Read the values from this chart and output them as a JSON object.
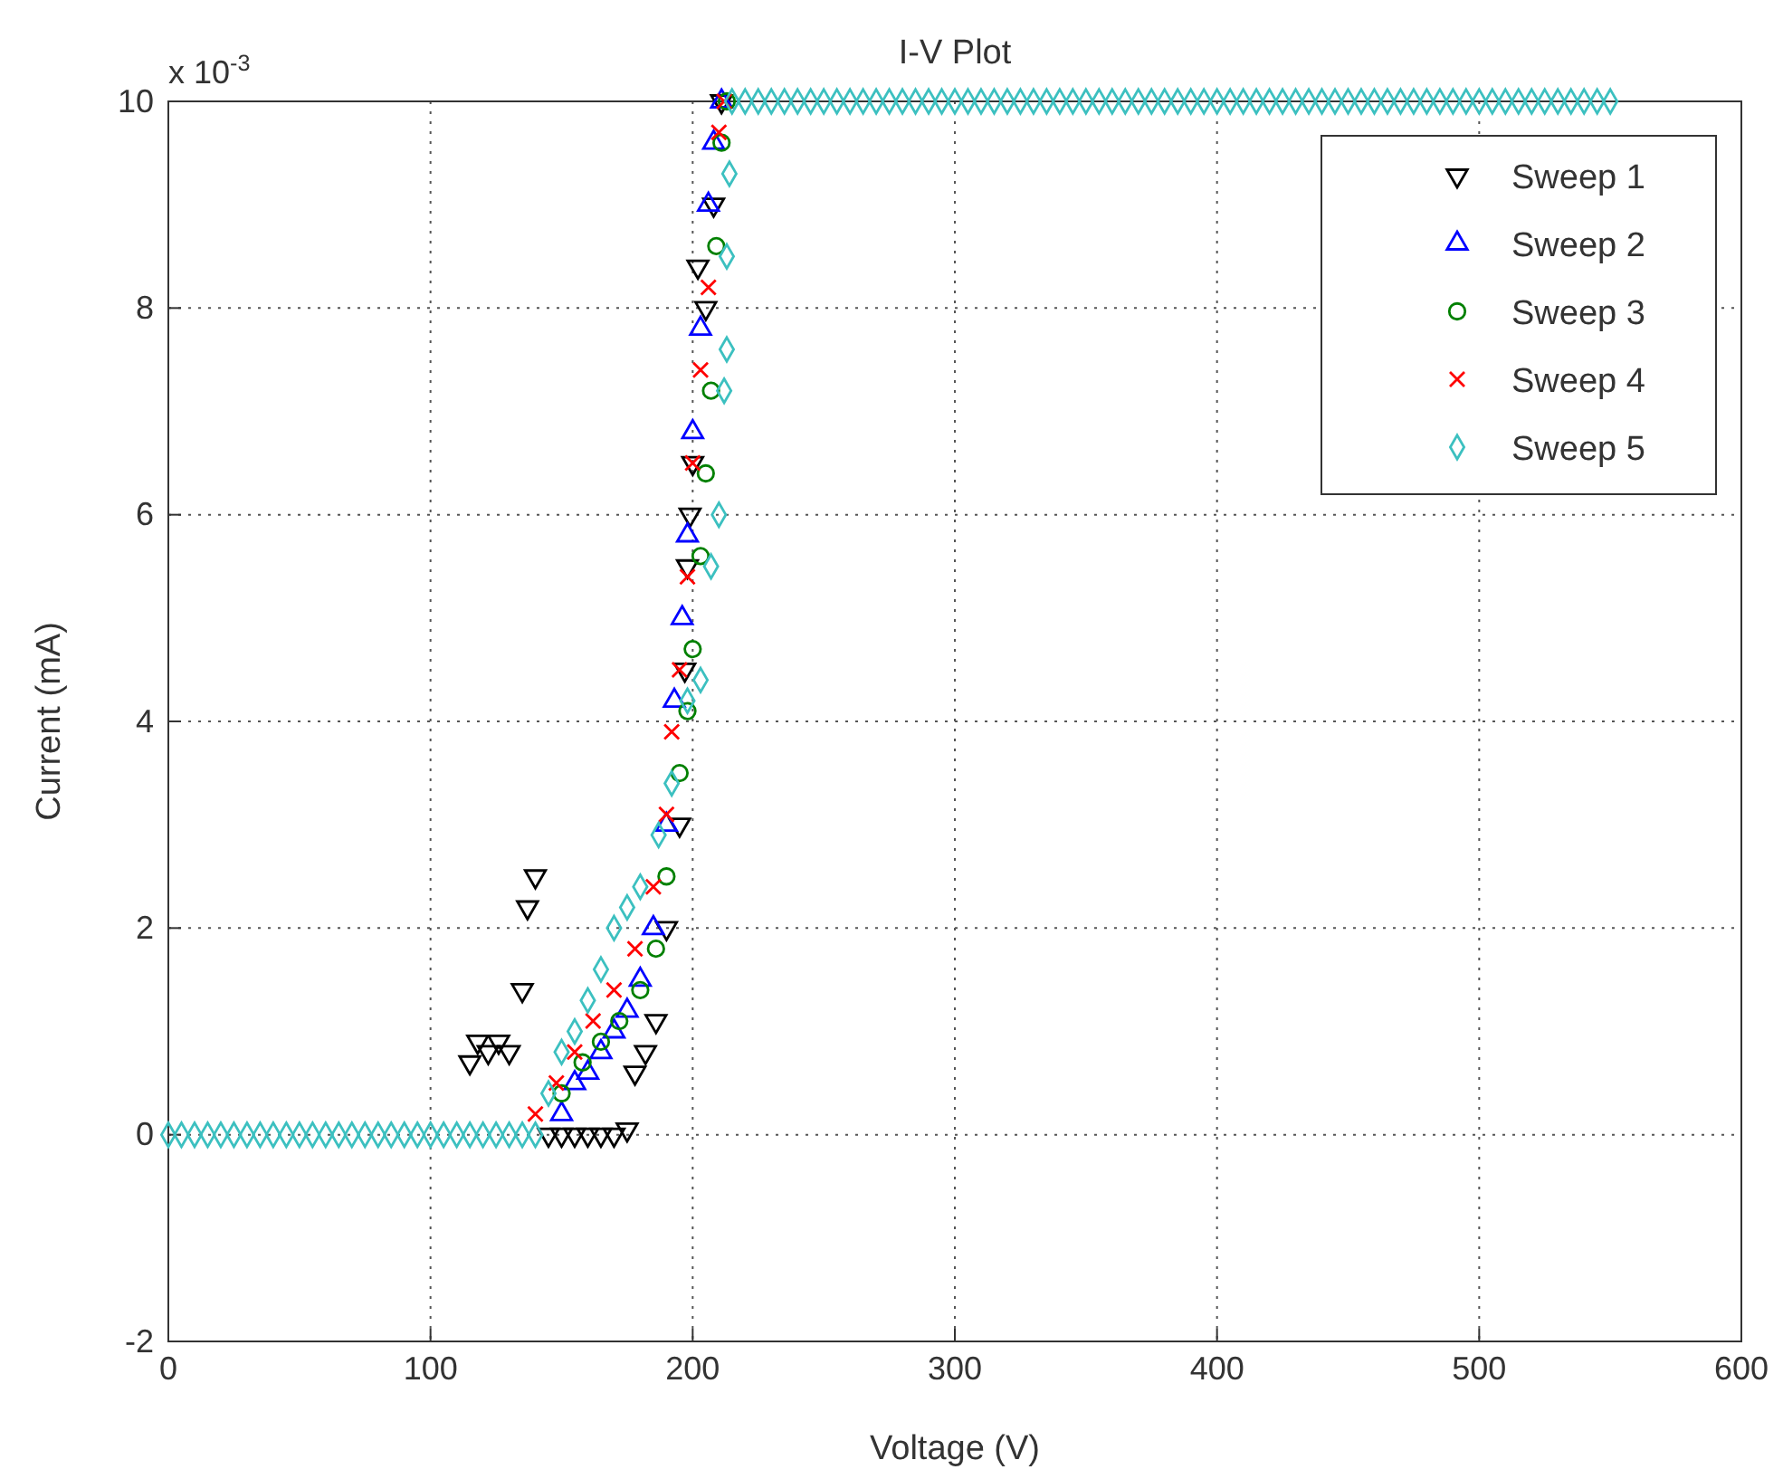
{
  "chart_data": {
    "type": "scatter",
    "title": "I-V Plot",
    "xlabel": "Voltage (V)",
    "ylabel": "Current (mA)",
    "annotations": [
      "x 10$^{-3}$"
    ],
    "xlim": [
      0,
      600
    ],
    "xticks": [
      0,
      100,
      200,
      300,
      400,
      500,
      600
    ],
    "ylim": [
      -2,
      10
    ],
    "yticks": [
      -2,
      0,
      2,
      4,
      6,
      8,
      10
    ],
    "grid": true,
    "legend": "top right",
    "series": [
      {
        "name": "Sweep 1",
        "color": "#000000",
        "marker": "triangle-down",
        "x": [
          115,
          118,
          122,
          126,
          130,
          135,
          137,
          140,
          145,
          150,
          155,
          160,
          165,
          170,
          175,
          178,
          182,
          186,
          190,
          195,
          197,
          198,
          199,
          200,
          202,
          205,
          208,
          211
        ],
        "values": [
          0.7,
          0.9,
          0.8,
          0.9,
          0.8,
          1.4,
          2.2,
          2.5,
          0,
          0,
          0,
          0,
          0,
          0,
          0.05,
          0.6,
          0.8,
          1.1,
          2,
          3,
          4.5,
          5.5,
          6,
          6.5,
          8.4,
          8,
          9,
          10
        ]
      },
      {
        "name": "Sweep 2",
        "color": "#0000ff",
        "marker": "triangle",
        "x": [
          150,
          155,
          160,
          165,
          170,
          175,
          180,
          185,
          190,
          193,
          196,
          198,
          200,
          203,
          206,
          208,
          211
        ],
        "values": [
          0.2,
          0.5,
          0.6,
          0.8,
          1,
          1.2,
          1.5,
          2,
          3,
          4.2,
          5,
          5.8,
          6.8,
          7.8,
          9,
          9.6,
          10
        ]
      },
      {
        "name": "Sweep 3",
        "color": "#008000",
        "marker": "circle",
        "x": [
          150,
          158,
          165,
          172,
          180,
          186,
          190,
          195,
          198,
          200,
          203,
          205,
          207,
          209,
          211,
          213
        ],
        "values": [
          0.4,
          0.7,
          0.9,
          1.1,
          1.4,
          1.8,
          2.5,
          3.5,
          4.1,
          4.7,
          5.6,
          6.4,
          7.2,
          8.6,
          9.6,
          10
        ]
      },
      {
        "name": "Sweep 4",
        "color": "#ff0000",
        "marker": "cross",
        "x": [
          140,
          148,
          155,
          162,
          170,
          178,
          185,
          190,
          192,
          195,
          198,
          200,
          203,
          206,
          210,
          212
        ],
        "values": [
          0.2,
          0.5,
          0.8,
          1.1,
          1.4,
          1.8,
          2.4,
          3.1,
          3.9,
          4.5,
          5.4,
          6.5,
          7.4,
          8.2,
          9.7,
          10
        ]
      },
      {
        "name": "Sweep 5",
        "color": "#3cc0c0",
        "marker": "diamond",
        "x": [
          0,
          5,
          10,
          15,
          20,
          25,
          30,
          35,
          40,
          45,
          50,
          55,
          60,
          65,
          70,
          75,
          80,
          85,
          90,
          95,
          100,
          105,
          110,
          115,
          120,
          125,
          130,
          135,
          140,
          145,
          150,
          155,
          160,
          165,
          170,
          175,
          180,
          187,
          192,
          198,
          203,
          207,
          210,
          212,
          213,
          213,
          214,
          215,
          220,
          225,
          230,
          235,
          240,
          245,
          250,
          255,
          260,
          265,
          270,
          275,
          280,
          285,
          290,
          295,
          300,
          305,
          310,
          315,
          320,
          325,
          330,
          335,
          340,
          345,
          350,
          355,
          360,
          365,
          370,
          375,
          380,
          385,
          390,
          395,
          400,
          405,
          410,
          415,
          420,
          425,
          430,
          435,
          440,
          445,
          450,
          455,
          460,
          465,
          470,
          475,
          480,
          485,
          490,
          495,
          500,
          505,
          510,
          515,
          520,
          525,
          530,
          535,
          540,
          545,
          550
        ],
        "values": [
          0,
          0,
          0,
          0,
          0,
          0,
          0,
          0,
          0,
          0,
          0,
          0,
          0,
          0,
          0,
          0,
          0,
          0,
          0,
          0,
          0,
          0,
          0,
          0,
          0,
          0,
          0,
          0,
          0,
          0.4,
          0.8,
          1,
          1.3,
          1.6,
          2,
          2.2,
          2.4,
          2.9,
          3.4,
          4.2,
          4.4,
          5.5,
          6,
          7.2,
          7.6,
          8.5,
          9.3,
          10,
          10,
          10,
          10,
          10,
          10,
          10,
          10,
          10,
          10,
          10,
          10,
          10,
          10,
          10,
          10,
          10,
          10,
          10,
          10,
          10,
          10,
          10,
          10,
          10,
          10,
          10,
          10,
          10,
          10,
          10,
          10,
          10,
          10,
          10,
          10,
          10,
          10,
          10,
          10,
          10,
          10,
          10,
          10,
          10,
          10,
          10,
          10,
          10,
          10,
          10,
          10,
          10,
          10,
          10,
          10,
          10,
          10,
          10,
          10,
          10,
          10,
          10,
          10,
          10,
          10,
          10,
          10
        ]
      }
    ]
  }
}
